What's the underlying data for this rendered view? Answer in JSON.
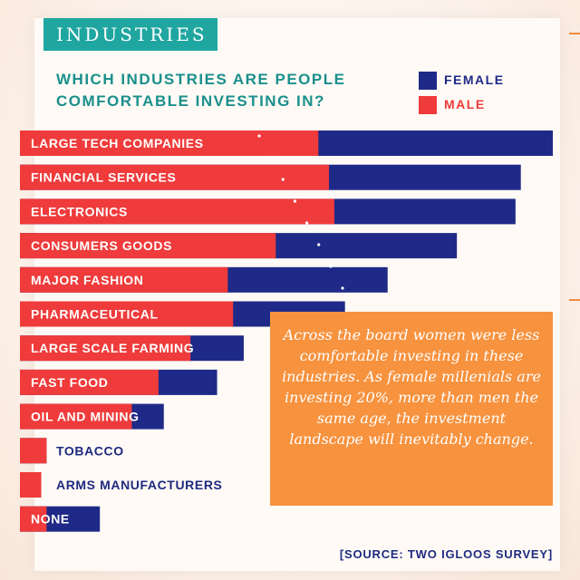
{
  "header": {
    "tag": "INDUSTRIES"
  },
  "source": "[SOURCE: TWO IGLOOS SURVEY]",
  "callout": {
    "text": "Across the board women were less comfortable investing in these industries. As female millenials are investing 20%, more than men the same age, the investment landscape will inevitably change."
  },
  "colors": {
    "female": "#1f2a88",
    "male": "#ef3b3b",
    "teal": "#1fa6a0",
    "callout": "#f7923e"
  },
  "chart_data": {
    "type": "bar",
    "orientation": "horizontal",
    "layout": "overlapped",
    "title": "WHICH INDUSTRIES ARE PEOPLE\nCOMFORTABLE INVESTING IN?",
    "legend": {
      "position": "top-right"
    },
    "grid": false,
    "xlim": [
      0,
      100
    ],
    "categories": [
      "LARGE TECH COMPANIES",
      "FINANCIAL SERVICES",
      "ELECTRONICS",
      "CONSUMERS GOODS",
      "MAJOR FASHION",
      "PHARMACEUTICAL",
      "LARGE SCALE FARMING",
      "FAST FOOD",
      "OIL AND MINING",
      "TOBACCO",
      "ARMS MANUFACTURERS",
      "NONE"
    ],
    "series": [
      {
        "name": "FEMALE",
        "values": [
          100,
          94,
          93,
          82,
          69,
          61,
          42,
          37,
          27,
          5,
          4,
          15
        ]
      },
      {
        "name": "MALE",
        "values": [
          56,
          58,
          59,
          48,
          39,
          40,
          32,
          26,
          21,
          5,
          4,
          5
        ]
      }
    ]
  }
}
